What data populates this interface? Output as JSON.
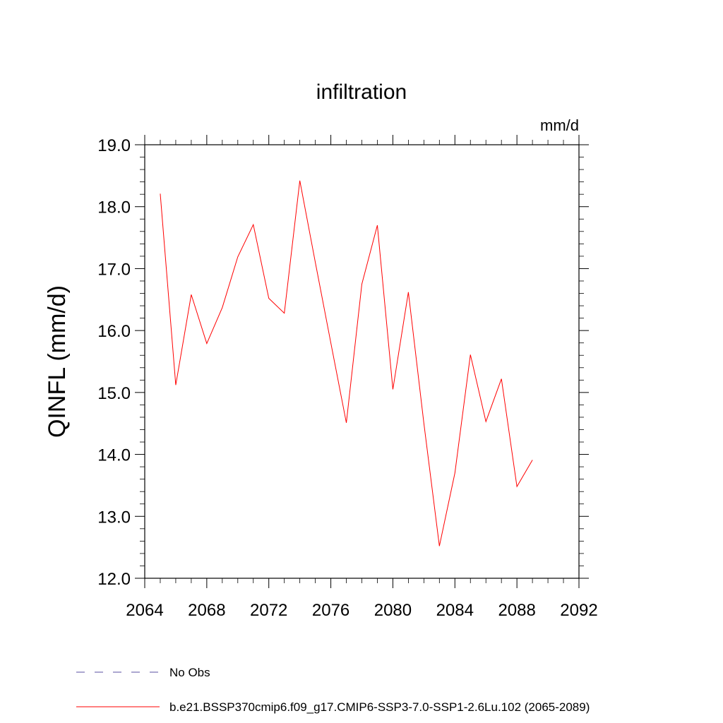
{
  "chart_data": {
    "type": "line",
    "title": "infiltration",
    "units": "mm/d",
    "ylabel": "QINFL  (mm/d)",
    "xlabel": "",
    "xlim": [
      2064,
      2092
    ],
    "ylim": [
      12.0,
      19.0
    ],
    "x_ticks": [
      2064,
      2068,
      2072,
      2076,
      2080,
      2084,
      2088,
      2092
    ],
    "x_tick_labels": [
      "2064",
      "2068",
      "2072",
      "2076",
      "2080",
      "2084",
      "2088",
      "2092"
    ],
    "y_ticks": [
      12,
      13,
      14,
      15,
      16,
      17,
      18,
      19
    ],
    "y_tick_labels": [
      "12.0",
      "13.0",
      "14.0",
      "15.0",
      "16.0",
      "17.0",
      "18.0",
      "19.0"
    ],
    "grid": false,
    "legend_placement": "bottom",
    "series": [
      {
        "name": "b.e21.BSSP370cmip6.f09_g17.CMIP6-SSP3-7.0-SSP1-2.6Lu.102 (2065-2089)",
        "color": "#ff0000",
        "style": "solid",
        "x": [
          2065,
          2066,
          2067,
          2068,
          2069,
          2070,
          2071,
          2072,
          2073,
          2074,
          2075,
          2076,
          2077,
          2078,
          2079,
          2080,
          2081,
          2082,
          2083,
          2084,
          2085,
          2086,
          2087,
          2088,
          2089
        ],
        "y": [
          18.21,
          15.12,
          16.58,
          15.79,
          16.37,
          17.19,
          17.71,
          16.52,
          16.28,
          18.42,
          17.1,
          15.8,
          14.51,
          16.75,
          17.7,
          15.05,
          16.62,
          14.5,
          12.52,
          13.7,
          15.61,
          14.53,
          15.22,
          13.48,
          13.91
        ]
      }
    ],
    "legend": [
      {
        "label": "No Obs",
        "color": "#5a4fa0",
        "style": "dashed"
      },
      {
        "label": "b.e21.BSSP370cmip6.f09_g17.CMIP6-SSP3-7.0-SSP1-2.6Lu.102 (2065-2089)",
        "color": "#ff0000",
        "style": "solid"
      }
    ]
  }
}
